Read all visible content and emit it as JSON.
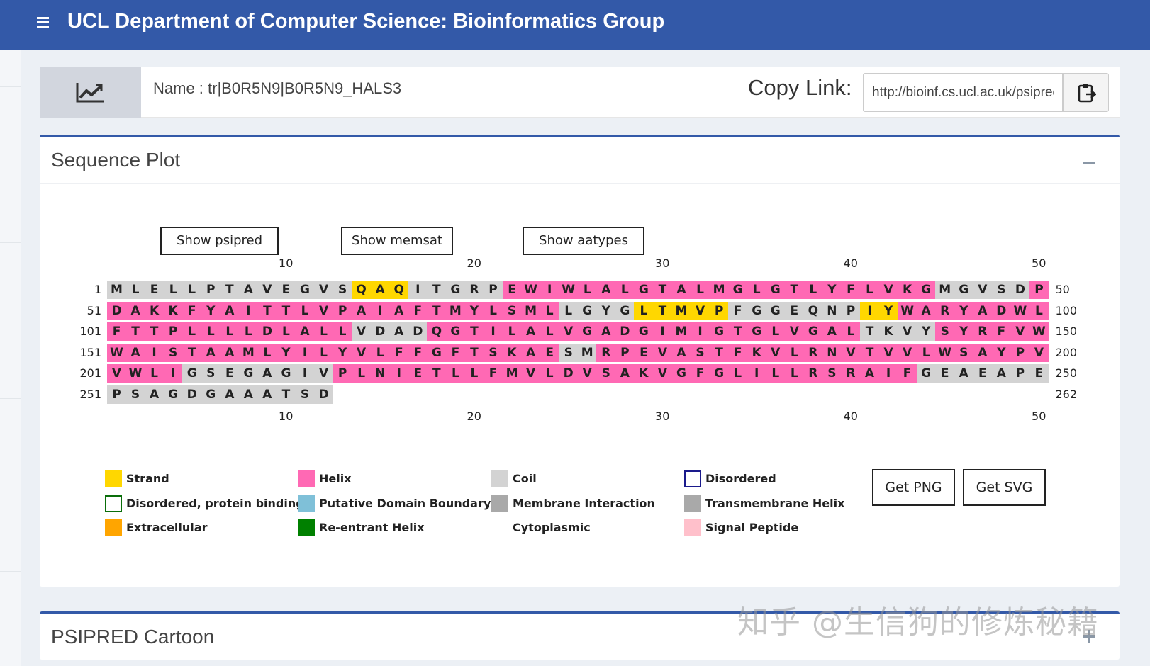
{
  "header": {
    "title": "UCL Department of Computer Science: Bioinformatics Group",
    "menu_icon": "hamburger-icon"
  },
  "info": {
    "name_text": "Name : tr|B0R5N9|B0R5N9_HALS3",
    "copy_label": "Copy Link:",
    "link_value": "http://bioinf.cs.ucl.ac.uk/psipred/",
    "chart_icon": "line-chart-icon",
    "copy_icon": "clipboard-icon"
  },
  "sequence_panel": {
    "title": "Sequence Plot",
    "buttons": {
      "psipred": "Show psipred",
      "memsat": "Show memsat",
      "aatypes": "Show aatypes"
    },
    "ruler": [
      "10",
      "20",
      "30",
      "40",
      "50"
    ],
    "colors": {
      "H": "#ff69b4",
      "E": "#ffd700",
      "C": "#d3d3d3"
    },
    "rows": [
      {
        "start": "1",
        "end": "50",
        "seq": "MLELLPTAVEGVSQAQITGRPEWIWLALGTALMGLGTLYFLVKGMGVSDP",
        "ss": "CCCCCCCCCCCCCEEECCCCCHHHHHHHHHHHHHHHHHHHHHHHCCCCCH"
      },
      {
        "start": "51",
        "end": "100",
        "seq": "DAKKFYAITTLVPAIAFTMYLSMLLGYGLTMVPFGGEQNPIYWARYADWL",
        "ss": "HHHHHHHHHHHHHHHHHHHHHHHHCCCCEEEEECCCCCCCEEHHHHHHHH"
      },
      {
        "start": "101",
        "end": "150",
        "seq": "FTTPLLLLDLALLVDADQGTILALVGADGIMIGTGLVGALTKVYSYRFVW",
        "ss": "HHHHHHHHHHHHHCCCCHHHHHHHHHHHHHHHHHHHHHHHCCCCHHHHHH"
      },
      {
        "start": "151",
        "end": "200",
        "seq": "WAISTAAMLYILYVLFFGFTSKAESMRPEVASTFKVLRNVTVVLWSAYPV",
        "ss": "HHHHHHHHHHHHHHHHHHHHHHHHCCHHHHHHHHHHHHHHHHHHHHHHHH"
      },
      {
        "start": "201",
        "end": "250",
        "seq": "VWLIGSEGAGIVPLNIETLLFMVLDVSAKVGFGLILLRSRAIFGEAEAPE",
        "ss": "HHHHCCCCCCCCHHHHHHHHHHHHHHHHHHHHHHHHHHHHHHHCCCCCCC"
      },
      {
        "start": "251",
        "end": "262",
        "seq": "PSAGDGAAATSD",
        "ss": "CCCCCCCCCCCC"
      }
    ],
    "legend": [
      {
        "label": "Strand",
        "swatch": "#ffd700",
        "border": "none"
      },
      {
        "label": "Helix",
        "swatch": "#ff69b4",
        "border": "none"
      },
      {
        "label": "Coil",
        "swatch": "#d3d3d3",
        "border": "none"
      },
      {
        "label": "Disordered",
        "swatch": "#ffffff",
        "border": "#1a1a8c"
      },
      {
        "label": "Disordered, protein binding",
        "swatch": "#ffffff",
        "border": "#0a6e0a"
      },
      {
        "label": "Putative Domain Boundary",
        "swatch": "#7fc0d8",
        "border": "none"
      },
      {
        "label": "Membrane Interaction",
        "swatch": "#a9a9a9",
        "border": "none"
      },
      {
        "label": "Transmembrane Helix",
        "swatch": "#a9a9a9",
        "border": "none"
      },
      {
        "label": "Extracellular",
        "swatch": "#ffa500",
        "border": "none"
      },
      {
        "label": "Re-entrant Helix",
        "swatch": "#008000",
        "border": "none"
      },
      {
        "label": "Cytoplasmic",
        "swatch": "",
        "border": "none"
      },
      {
        "label": "Signal Peptide",
        "swatch": "#ffc0cb",
        "border": "none"
      }
    ],
    "get_png": "Get PNG",
    "get_svg": "Get SVG"
  },
  "cartoon_panel": {
    "title": "PSIPRED Cartoon"
  },
  "watermark": "知乎 @生信狗的修炼秘籍"
}
